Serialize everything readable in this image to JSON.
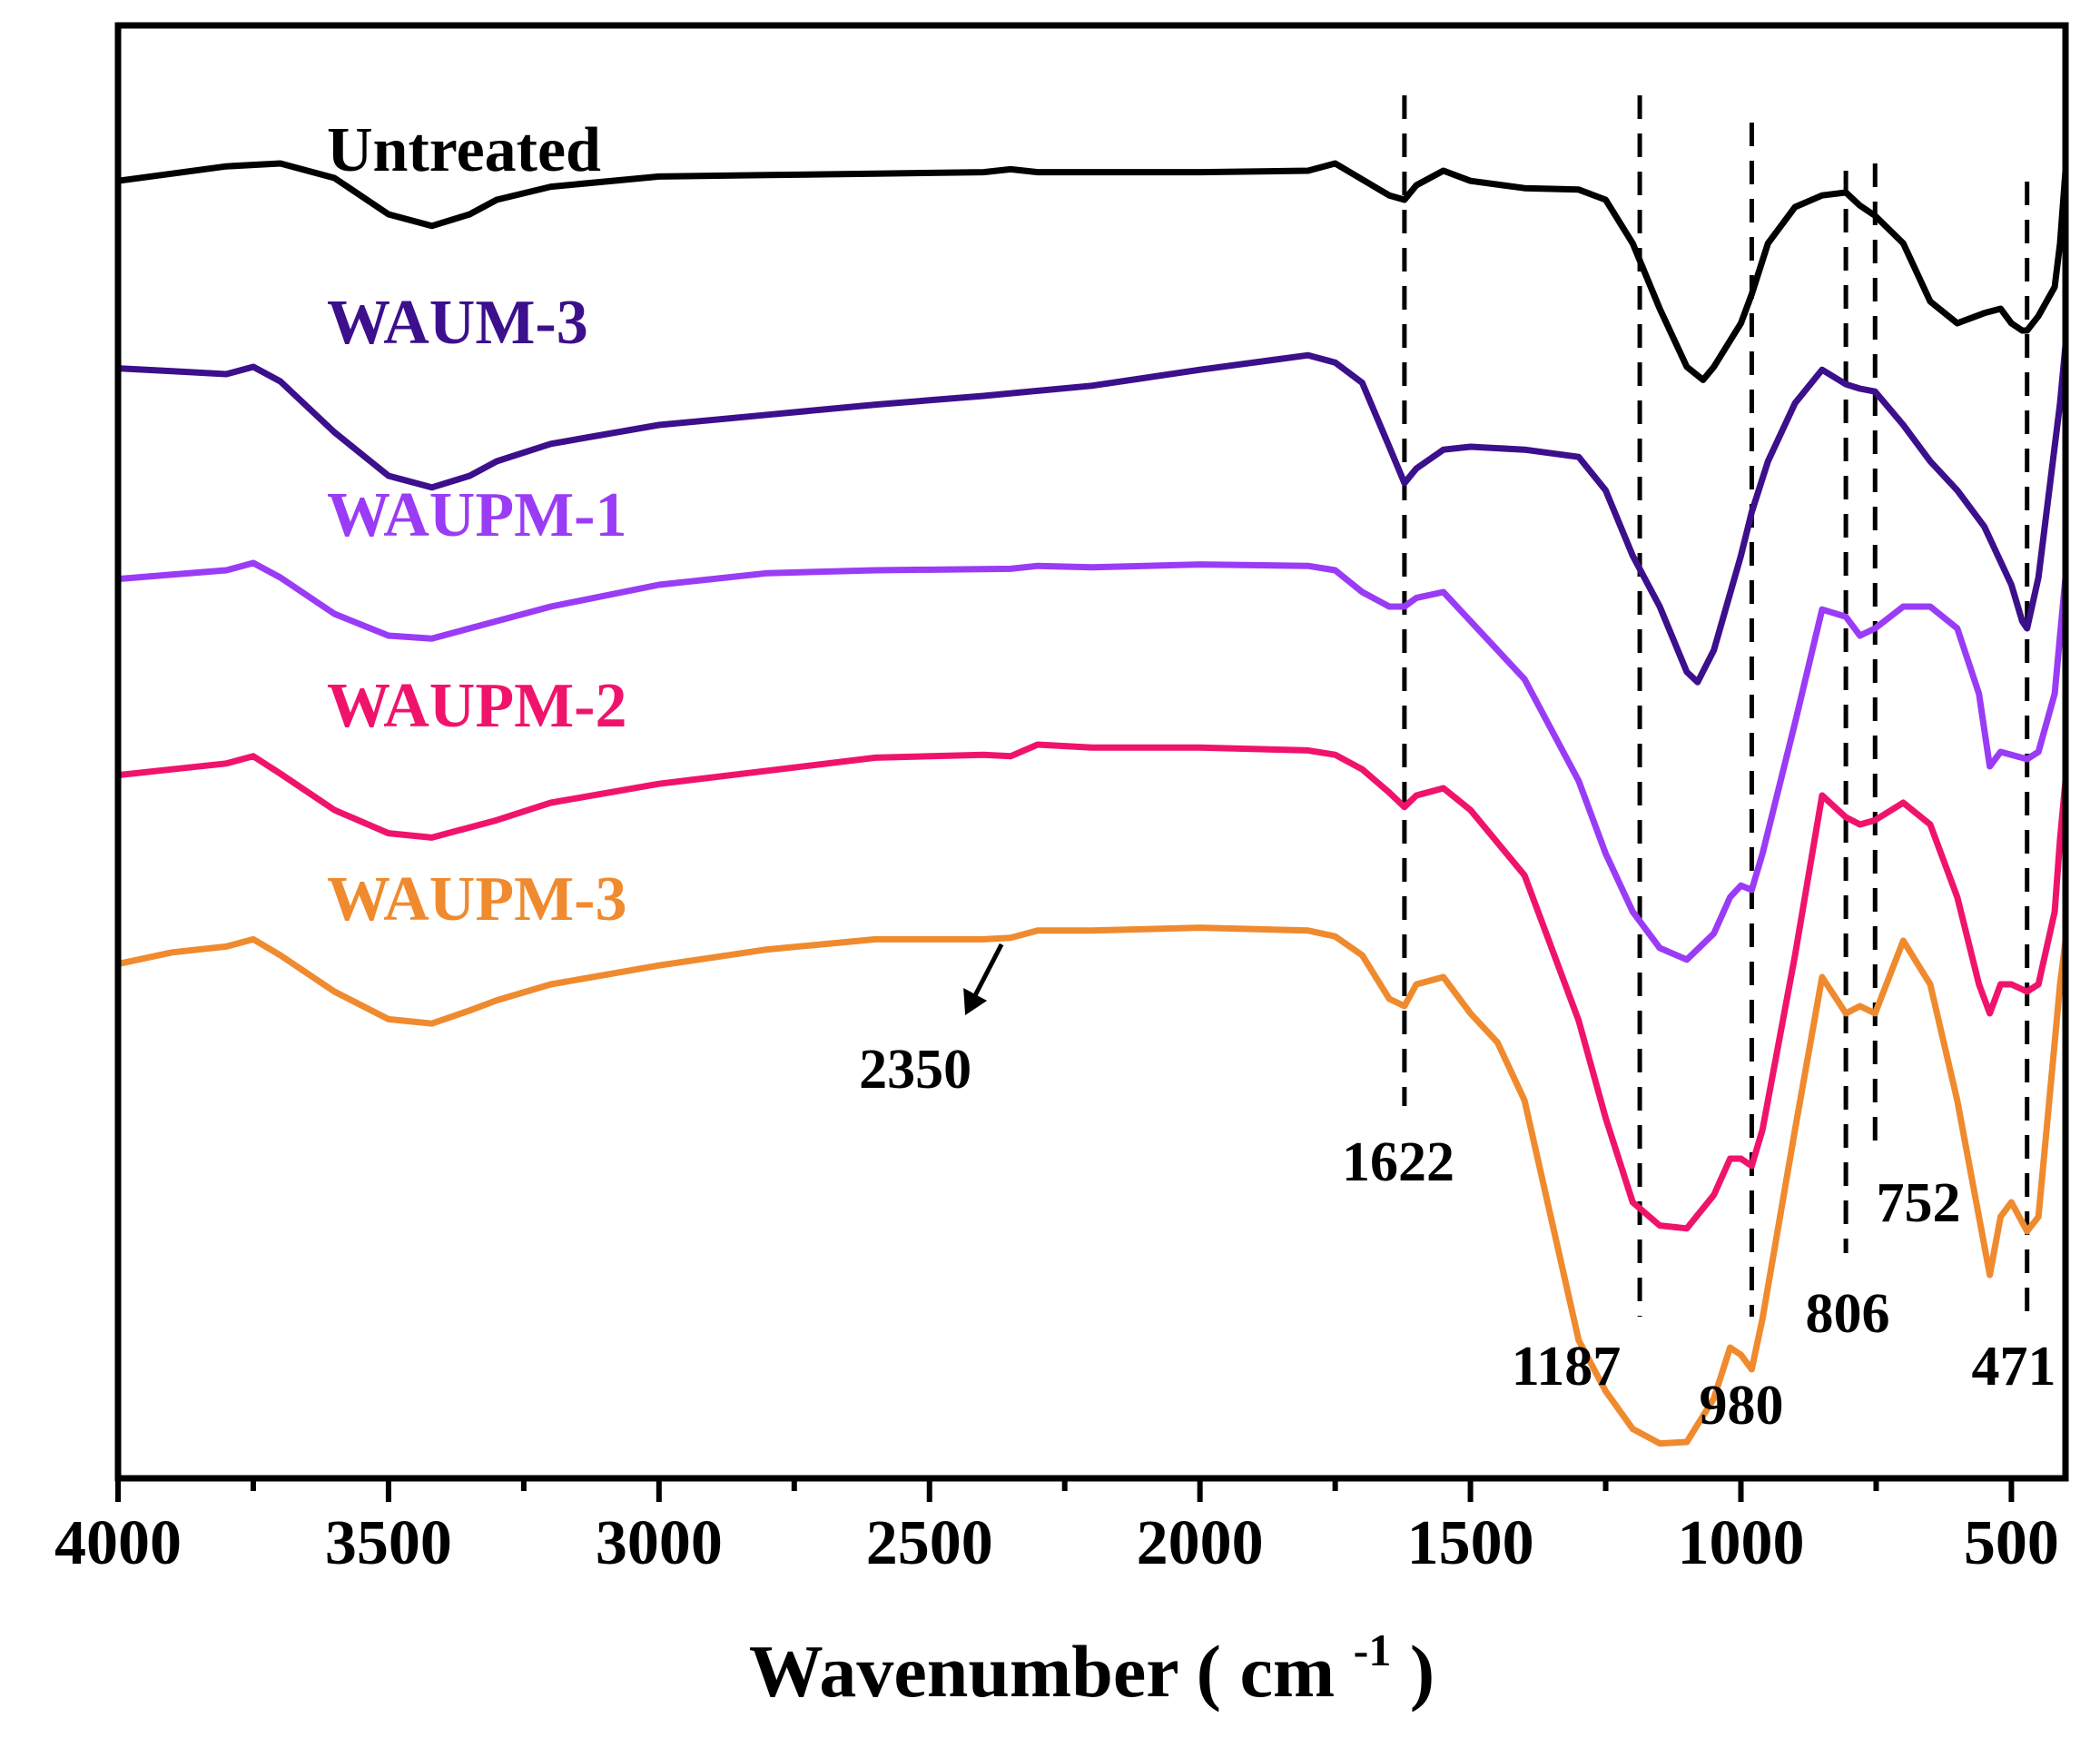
{
  "chart_data": {
    "type": "line",
    "title": "",
    "xlabel": "Wavenumber",
    "xlabel_unit_base": "cm",
    "xlabel_unit_exp": "-1",
    "ylabel": "",
    "xlim": [
      4000,
      400
    ],
    "x_reversed": true,
    "xticks": [
      4000,
      3500,
      3000,
      2500,
      2000,
      1500,
      1000,
      500
    ],
    "xtick_labels": [
      "4000",
      "3500",
      "3000",
      "2500",
      "2000",
      "1500",
      "1000",
      "500"
    ],
    "ylim": [
      0,
      100
    ],
    "grid": false,
    "legend": "labels placed near each curve (left side)",
    "peak_lines": [
      {
        "x": 1622,
        "label": "1622"
      },
      {
        "x": 1187,
        "label": "1187"
      },
      {
        "x": 980,
        "label": "980"
      },
      {
        "x": 806,
        "label": "806"
      },
      {
        "x": 752,
        "label": "752"
      },
      {
        "x": 471,
        "label": "471"
      }
    ],
    "annotations": [
      {
        "text": "2350",
        "x": 2350,
        "arrow": true
      }
    ],
    "series": [
      {
        "name": "Untreated",
        "color": "#000000",
        "x": [
          4000,
          3900,
          3800,
          3700,
          3600,
          3500,
          3420,
          3350,
          3300,
          3200,
          3000,
          2800,
          2600,
          2400,
          2350,
          2300,
          2200,
          2000,
          1800,
          1750,
          1700,
          1650,
          1622,
          1600,
          1550,
          1500,
          1400,
          1300,
          1250,
          1200,
          1150,
          1100,
          1070,
          1050,
          1000,
          980,
          950,
          900,
          850,
          806,
          780,
          752,
          700,
          650,
          600,
          550,
          520,
          500,
          480,
          471,
          450,
          420,
          410,
          400
        ],
        "y": [
          89.3,
          89.8,
          90.3,
          90.5,
          89.5,
          87.0,
          86.2,
          87.0,
          88.0,
          88.9,
          89.6,
          89.7,
          89.8,
          89.9,
          90.1,
          89.9,
          89.9,
          89.9,
          90.0,
          90.5,
          89.4,
          88.3,
          88.0,
          89.0,
          90.0,
          89.3,
          88.8,
          88.7,
          88.0,
          85.0,
          80.5,
          76.5,
          75.6,
          76.5,
          79.5,
          81.5,
          85.0,
          87.5,
          88.3,
          88.5,
          87.6,
          86.9,
          85.0,
          81.0,
          79.5,
          80.2,
          80.5,
          79.5,
          79.0,
          79.0,
          80.0,
          82.0,
          85.0,
          90.0
        ]
      },
      {
        "name": "WAUM-3",
        "color": "#3c0f8c",
        "x": [
          4000,
          3900,
          3800,
          3750,
          3700,
          3600,
          3500,
          3420,
          3350,
          3300,
          3200,
          3000,
          2800,
          2600,
          2400,
          2200,
          2000,
          1800,
          1750,
          1700,
          1650,
          1622,
          1600,
          1550,
          1500,
          1400,
          1300,
          1250,
          1200,
          1150,
          1100,
          1080,
          1050,
          1000,
          980,
          950,
          900,
          850,
          806,
          780,
          752,
          700,
          650,
          600,
          550,
          500,
          480,
          471,
          450,
          430,
          410,
          400
        ],
        "y": [
          76.4,
          76.2,
          76.0,
          76.5,
          75.5,
          72.0,
          69.0,
          68.2,
          69.0,
          70.0,
          71.2,
          72.5,
          73.2,
          73.9,
          74.5,
          75.2,
          76.3,
          77.3,
          76.8,
          75.4,
          71.0,
          68.5,
          69.5,
          70.8,
          71.0,
          70.8,
          70.3,
          68.0,
          63.5,
          60.0,
          55.5,
          54.8,
          57.0,
          63.5,
          66.5,
          70.0,
          74.0,
          76.3,
          75.3,
          75.0,
          74.8,
          72.5,
          70.0,
          68.0,
          65.5,
          61.5,
          59.0,
          58.5,
          62.0,
          68.0,
          74.0,
          78.0
        ]
      },
      {
        "name": "WAUPM-1",
        "color": "#9a3cf5",
        "x": [
          4000,
          3900,
          3800,
          3750,
          3700,
          3600,
          3500,
          3420,
          3350,
          3300,
          3200,
          3000,
          2800,
          2600,
          2350,
          2300,
          2200,
          2000,
          1800,
          1750,
          1700,
          1650,
          1622,
          1600,
          1550,
          1500,
          1400,
          1300,
          1250,
          1200,
          1150,
          1100,
          1050,
          1020,
          1000,
          980,
          960,
          900,
          850,
          806,
          780,
          752,
          700,
          650,
          600,
          560,
          540,
          520,
          500,
          471,
          450,
          420,
          410,
          400
        ],
        "y": [
          61.9,
          62.2,
          62.5,
          63.0,
          62.0,
          59.5,
          58.0,
          57.8,
          58.5,
          59.0,
          60.0,
          61.5,
          62.3,
          62.5,
          62.6,
          62.8,
          62.7,
          62.9,
          62.8,
          62.5,
          61.0,
          60.0,
          60.0,
          60.6,
          61.0,
          59.0,
          55.0,
          48.0,
          43.0,
          39.0,
          36.5,
          35.7,
          37.5,
          40.0,
          40.8,
          40.5,
          43.0,
          52.0,
          59.8,
          59.3,
          58.0,
          58.5,
          60.0,
          60.0,
          58.5,
          54.0,
          49.0,
          50.0,
          49.8,
          49.5,
          50.0,
          54.0,
          58.0,
          62.0
        ]
      },
      {
        "name": "WAUPM-2",
        "color": "#f0136c",
        "x": [
          4000,
          3900,
          3800,
          3750,
          3700,
          3600,
          3500,
          3420,
          3350,
          3300,
          3200,
          3000,
          2800,
          2600,
          2400,
          2350,
          2300,
          2200,
          2000,
          1800,
          1750,
          1700,
          1650,
          1622,
          1600,
          1550,
          1500,
          1400,
          1300,
          1250,
          1200,
          1150,
          1100,
          1050,
          1020,
          1000,
          980,
          960,
          900,
          850,
          806,
          780,
          752,
          700,
          650,
          600,
          560,
          540,
          520,
          500,
          471,
          450,
          420,
          410,
          400
        ],
        "y": [
          48.4,
          48.8,
          49.2,
          49.7,
          48.5,
          46.0,
          44.4,
          44.1,
          44.8,
          45.3,
          46.5,
          47.8,
          48.7,
          49.6,
          49.8,
          49.7,
          50.5,
          50.3,
          50.3,
          50.1,
          49.8,
          48.8,
          47.2,
          46.2,
          47.0,
          47.5,
          46.0,
          41.5,
          31.5,
          24.8,
          19.0,
          17.4,
          17.2,
          19.5,
          22.0,
          22.0,
          21.5,
          24.0,
          36.0,
          47.0,
          45.5,
          45.0,
          45.3,
          46.5,
          45.0,
          40.0,
          34.0,
          32.0,
          34.0,
          34.0,
          33.5,
          34.0,
          39.0,
          44.0,
          48.0
        ]
      },
      {
        "name": "WAUPM-3",
        "color": "#f08a2e",
        "x": [
          4000,
          3900,
          3800,
          3750,
          3700,
          3600,
          3500,
          3420,
          3350,
          3300,
          3200,
          3000,
          2800,
          2600,
          2400,
          2350,
          2300,
          2200,
          2000,
          1800,
          1750,
          1700,
          1650,
          1622,
          1600,
          1550,
          1500,
          1450,
          1400,
          1300,
          1250,
          1200,
          1150,
          1100,
          1050,
          1020,
          1000,
          980,
          960,
          900,
          850,
          806,
          780,
          752,
          700,
          650,
          600,
          560,
          540,
          520,
          500,
          471,
          450,
          420,
          410,
          400
        ],
        "y": [
          35.4,
          36.2,
          36.6,
          37.1,
          36.0,
          33.5,
          31.6,
          31.3,
          32.2,
          32.9,
          34.0,
          35.3,
          36.4,
          37.1,
          37.1,
          37.2,
          37.7,
          37.7,
          37.9,
          37.7,
          37.3,
          36.0,
          33.0,
          32.5,
          34.0,
          34.5,
          32.0,
          30.0,
          26.0,
          9.5,
          6.0,
          3.4,
          2.4,
          2.5,
          5.5,
          9.0,
          8.5,
          7.5,
          11.0,
          24.0,
          34.5,
          32.0,
          32.5,
          32.0,
          37.0,
          34.0,
          26.0,
          18.0,
          14.0,
          18.0,
          19.0,
          17.0,
          18.0,
          30.0,
          34.0,
          37.0
        ]
      }
    ]
  }
}
